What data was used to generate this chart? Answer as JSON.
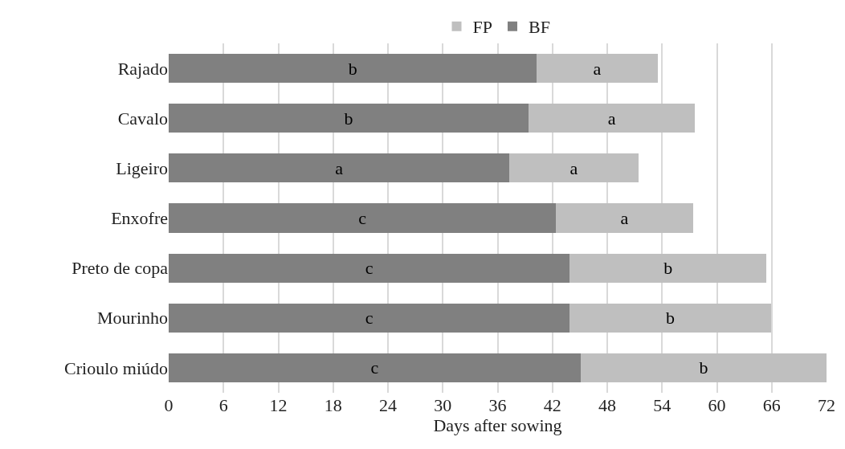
{
  "chart_data": {
    "type": "bar",
    "orientation": "horizontal",
    "stacked": true,
    "xlabel": "Days after sowing",
    "categories": [
      "Rajado",
      "Cavalo",
      "Ligeiro",
      "Enxofre",
      "Preto de copa",
      "Mourinho",
      "Crioulo miúdo"
    ],
    "series": [
      {
        "name": "BF",
        "color": "#808080",
        "values": [
          40.3,
          39.4,
          37.3,
          42.4,
          43.9,
          43.9,
          45.1
        ],
        "value_labels": [
          "b",
          "b",
          "a",
          "c",
          "c",
          "c",
          "c"
        ]
      },
      {
        "name": "FP",
        "color": "#bfbfbf",
        "values": [
          13.2,
          18.2,
          14.1,
          15.0,
          21.5,
          22.0,
          26.9
        ],
        "value_labels": [
          "a",
          "a",
          "a",
          "a",
          "b",
          "b",
          "b"
        ]
      }
    ],
    "xlim": [
      0,
      72
    ],
    "xticks": [
      0,
      6,
      12,
      18,
      24,
      30,
      36,
      42,
      48,
      54,
      60,
      66,
      72
    ],
    "grid": "x",
    "legend": "top"
  }
}
